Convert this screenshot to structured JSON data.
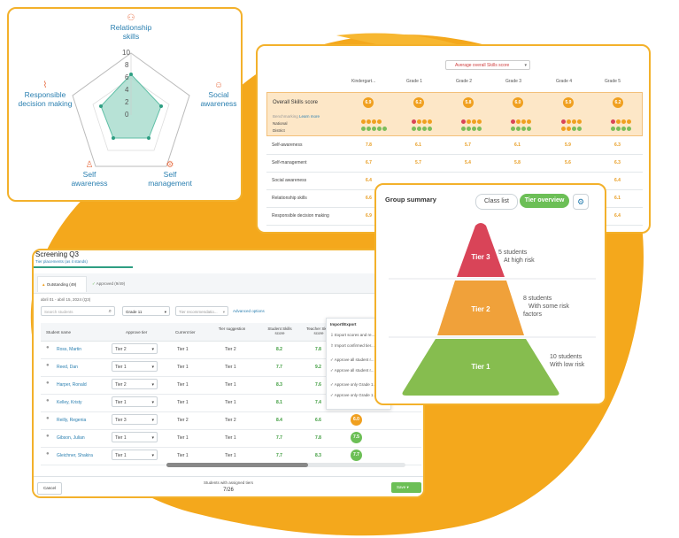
{
  "colors": {
    "accent": "#f3b12b",
    "blob": "#f4a81c",
    "tier3": "#d94458",
    "tier2": "#f0a13a",
    "tier1": "#86bd4f",
    "teal": "#2e9e82",
    "link": "#2a7fb0"
  },
  "radar": {
    "labels": {
      "top": "Relationship skills",
      "right": "Social awareness",
      "bottom_right": "Self management",
      "bottom_left": "Self awareness",
      "left": "Responsible decision making"
    },
    "ticks": [
      "10",
      "8",
      "6",
      "4",
      "2",
      "0"
    ]
  },
  "skills_table": {
    "dropdown": "Average overall Skills score",
    "columns": [
      "Kindergart...",
      "Grade 1",
      "Grade 2",
      "Grade 3",
      "Grade 4",
      "Grade 5"
    ],
    "overall_label": "Overall Skills score",
    "overall_values": [
      "6.9",
      "6.2",
      "5.8",
      "6.0",
      "5.9",
      "6.2"
    ],
    "benchmarking": "Benchmarking",
    "learn_more": "Learn more",
    "national": "National",
    "district": "District",
    "rows": [
      {
        "label": "Self-awareness",
        "values": [
          "7.8",
          "6.1",
          "5.7",
          "6.1",
          "5.9",
          "6.3"
        ]
      },
      {
        "label": "Self-management",
        "values": [
          "6.7",
          "5.7",
          "5.4",
          "5.8",
          "5.6",
          "6.3"
        ]
      },
      {
        "label": "Social awareness",
        "values": [
          "6.4",
          "",
          "",
          "",
          "",
          "6.4"
        ]
      },
      {
        "label": "Relationship skills",
        "values": [
          "6.6",
          "",
          "",
          "",
          "",
          "6.1"
        ]
      },
      {
        "label": "Responsible decision making",
        "values": [
          "6.9",
          "",
          "",
          "",
          "",
          "6.4"
        ]
      }
    ]
  },
  "group_summary": {
    "title": "Group summary",
    "tab_class_list": "Class list",
    "tab_tier_overview": "Tier overview",
    "tiers": [
      {
        "name": "Tier 3",
        "count": "5 students",
        "desc": "At high risk"
      },
      {
        "name": "Tier 2",
        "count": "8 students",
        "desc": "With some risk factors"
      },
      {
        "name": "Tier 1",
        "count": "10 students",
        "desc": "With low risk"
      }
    ]
  },
  "screening": {
    "title": "Screening Q3",
    "subtitle": "Tier placements (as it stands)",
    "tab_outstanding": "Outstanding (49)",
    "tab_approved": "Approved (9/49)",
    "date_range": "abril 01 - abril 15, 2024 (Q3)",
    "search_placeholder": "Search students",
    "grade_filter": "Grade 11",
    "tier_filter": "Tier recommendatio...",
    "advanced": "Advanced options",
    "columns": [
      "Student name",
      "Approve tier",
      "Current tier",
      "Tier suggestion",
      "Student Skills score",
      "Teacher Skills score"
    ],
    "students": [
      {
        "name": "Ross, Martin",
        "approve": "Tier 2",
        "current": "Tier 1",
        "suggest": "Tier 2",
        "sscore": "8.2",
        "tscore": "7.8",
        "chip": ""
      },
      {
        "name": "Reed, Dan",
        "approve": "Tier 1",
        "current": "Tier 1",
        "suggest": "Tier 1",
        "sscore": "7.7",
        "tscore": "9.2",
        "chip": ""
      },
      {
        "name": "Harper, Ronald",
        "approve": "Tier 2",
        "current": "Tier 1",
        "suggest": "Tier 1",
        "sscore": "8.3",
        "tscore": "7.6",
        "chip": ""
      },
      {
        "name": "Kelley, Kristy",
        "approve": "Tier 1",
        "current": "Tier 1",
        "suggest": "Tier 1",
        "sscore": "8.1",
        "tscore": "7.4",
        "chip": "7.6"
      },
      {
        "name": "Reilly, Regenia",
        "approve": "Tier 3",
        "current": "Tier 2",
        "suggest": "Tier 2",
        "sscore": "8.4",
        "tscore": "6.6",
        "chip": "6.0"
      },
      {
        "name": "Gibson, Julian",
        "approve": "Tier 1",
        "current": "Tier 1",
        "suggest": "Tier 1",
        "sscore": "7.7",
        "tscore": "7.8",
        "chip": "7.5"
      },
      {
        "name": "Gleichner, Shakira",
        "approve": "Tier 1",
        "current": "Tier 1",
        "suggest": "Tier 1",
        "sscore": "7.7",
        "tscore": "8.3",
        "chip": "7.7"
      }
    ],
    "menu_title": "Import/Export",
    "menu_items": [
      "Export scores and re...",
      "Import confirmed tier...",
      "Approve all student r...",
      "Approve all student r...",
      "Approve only Grade 1...",
      "Approve only Grade 1..."
    ],
    "cancel": "Cancel",
    "footer_label": "Students with assigned tiers",
    "footer_count": "7/26",
    "save": "Save"
  }
}
